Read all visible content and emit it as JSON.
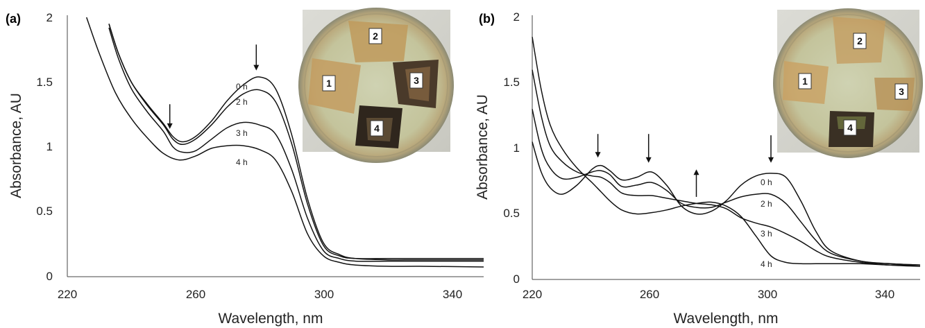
{
  "chart_data": [
    {
      "panel": "(a)",
      "type": "line",
      "xlabel": "Wavelength, nm",
      "ylabel": "Absorbance, AU",
      "xlim": [
        220,
        350
      ],
      "ylim": [
        0,
        2
      ],
      "xticks": [
        "220",
        "260",
        "300",
        "340"
      ],
      "yticks": [
        "0",
        "0.5",
        "1",
        "1.5",
        "2"
      ],
      "series": [
        {
          "name": "0 h",
          "x": [
            233,
            236,
            240,
            245,
            250,
            253,
            256,
            260,
            265,
            270,
            275,
            280,
            285,
            290,
            295,
            300,
            305,
            310,
            320,
            330,
            350
          ],
          "y": [
            1.95,
            1.72,
            1.5,
            1.33,
            1.18,
            1.08,
            1.04,
            1.08,
            1.2,
            1.36,
            1.48,
            1.54,
            1.45,
            1.1,
            0.6,
            0.26,
            0.17,
            0.14,
            0.13,
            0.13,
            0.13
          ]
        },
        {
          "name": "2 h",
          "x": [
            233,
            236,
            240,
            245,
            250,
            253,
            256,
            260,
            265,
            270,
            275,
            280,
            285,
            290,
            295,
            300,
            305,
            310,
            320,
            330,
            350
          ],
          "y": [
            1.95,
            1.72,
            1.5,
            1.32,
            1.17,
            1.06,
            1.02,
            1.06,
            1.17,
            1.31,
            1.41,
            1.44,
            1.35,
            1.03,
            0.56,
            0.24,
            0.16,
            0.14,
            0.14,
            0.14,
            0.14
          ]
        },
        {
          "name": "3 h",
          "x": [
            233,
            236,
            240,
            245,
            250,
            253,
            256,
            260,
            265,
            270,
            275,
            280,
            285,
            290,
            295,
            300,
            305,
            310,
            320,
            330,
            350
          ],
          "y": [
            1.92,
            1.68,
            1.45,
            1.27,
            1.12,
            1.0,
            0.96,
            0.97,
            1.06,
            1.15,
            1.19,
            1.17,
            1.1,
            0.83,
            0.45,
            0.2,
            0.14,
            0.12,
            0.12,
            0.12,
            0.12
          ]
        },
        {
          "name": "4 h",
          "x": [
            226,
            230,
            235,
            240,
            245,
            250,
            255,
            260,
            265,
            270,
            275,
            280,
            285,
            290,
            295,
            300,
            305,
            310,
            320,
            330,
            350
          ],
          "y": [
            2.0,
            1.72,
            1.42,
            1.22,
            1.07,
            0.95,
            0.9,
            0.93,
            0.99,
            1.01,
            1.01,
            0.98,
            0.9,
            0.66,
            0.33,
            0.16,
            0.11,
            0.09,
            0.08,
            0.08,
            0.075
          ]
        }
      ],
      "annotations": [
        {
          "text": "0 h"
        },
        {
          "text": "2 h"
        },
        {
          "text": "3 h"
        },
        {
          "text": "4 h"
        }
      ],
      "arrows": [
        {
          "x": 252,
          "y_from": 1.33,
          "y_to": 1.14,
          "direction": "down"
        },
        {
          "x": 279,
          "y_from": 1.79,
          "y_to": 1.59,
          "direction": "down"
        }
      ],
      "inset": {
        "labels": [
          "1",
          "2",
          "3",
          "4"
        ]
      }
    },
    {
      "panel": "(b)",
      "type": "line",
      "xlabel": "Wavelength, nm",
      "ylabel": "Absorbance, AU",
      "xlim": [
        220,
        350
      ],
      "ylim": [
        0,
        2
      ],
      "xticks": [
        "220",
        "260",
        "300",
        "340"
      ],
      "yticks": [
        "0",
        "0.5",
        "1",
        "1.5",
        "2"
      ],
      "series": [
        {
          "name": "0 h",
          "x": [
            220,
            223,
            226,
            230,
            235,
            240,
            243,
            246,
            250,
            255,
            260,
            265,
            270,
            275,
            280,
            285,
            290,
            295,
            300,
            305,
            310,
            315,
            320,
            330,
            340,
            350
          ],
          "y": [
            1.05,
            0.82,
            0.7,
            0.65,
            0.72,
            0.84,
            0.87,
            0.83,
            0.76,
            0.78,
            0.82,
            0.72,
            0.56,
            0.5,
            0.52,
            0.6,
            0.72,
            0.79,
            0.81,
            0.78,
            0.6,
            0.37,
            0.22,
            0.14,
            0.12,
            0.11
          ]
        },
        {
          "name": "2 h",
          "x": [
            220,
            223,
            226,
            230,
            235,
            240,
            243,
            246,
            250,
            255,
            260,
            265,
            270,
            275,
            280,
            285,
            290,
            295,
            300,
            305,
            310,
            315,
            320,
            330,
            340,
            350
          ],
          "y": [
            1.3,
            1.0,
            0.85,
            0.77,
            0.78,
            0.82,
            0.83,
            0.8,
            0.71,
            0.72,
            0.74,
            0.68,
            0.58,
            0.55,
            0.55,
            0.59,
            0.63,
            0.65,
            0.65,
            0.58,
            0.44,
            0.3,
            0.2,
            0.14,
            0.12,
            0.11
          ]
        },
        {
          "name": "3 h",
          "x": [
            220,
            223,
            226,
            230,
            235,
            240,
            243,
            246,
            250,
            255,
            260,
            265,
            270,
            275,
            280,
            285,
            290,
            295,
            300,
            305,
            310,
            315,
            320,
            330,
            340,
            350
          ],
          "y": [
            1.6,
            1.25,
            1.02,
            0.9,
            0.82,
            0.79,
            0.78,
            0.74,
            0.66,
            0.64,
            0.64,
            0.62,
            0.6,
            0.58,
            0.57,
            0.54,
            0.47,
            0.43,
            0.4,
            0.35,
            0.29,
            0.22,
            0.17,
            0.13,
            0.11,
            0.1
          ]
        },
        {
          "name": "4 h",
          "x": [
            220,
            223,
            226,
            230,
            235,
            240,
            243,
            246,
            250,
            255,
            260,
            265,
            270,
            275,
            280,
            285,
            290,
            295,
            300,
            305,
            310,
            315,
            320,
            330,
            340,
            350
          ],
          "y": [
            1.85,
            1.45,
            1.18,
            1.0,
            0.85,
            0.74,
            0.67,
            0.6,
            0.53,
            0.5,
            0.51,
            0.53,
            0.56,
            0.58,
            0.59,
            0.56,
            0.48,
            0.33,
            0.18,
            0.13,
            0.12,
            0.12,
            0.12,
            0.12,
            0.11,
            0.11
          ]
        }
      ],
      "annotations": [
        {
          "text": "0 h"
        },
        {
          "text": "2 h"
        },
        {
          "text": "3 h"
        },
        {
          "text": "4 h"
        }
      ],
      "arrows": [
        {
          "x": 242,
          "y_from": 1.11,
          "y_to": 0.93,
          "direction": "down"
        },
        {
          "x": 259,
          "y_from": 1.11,
          "y_to": 0.89,
          "direction": "down"
        },
        {
          "x": 300,
          "y_from": 1.1,
          "y_to": 0.89,
          "direction": "down"
        },
        {
          "x": 275,
          "y_from": 0.63,
          "y_to": 0.84,
          "direction": "up"
        }
      ],
      "inset": {
        "labels": [
          "1",
          "2",
          "3",
          "4"
        ]
      }
    }
  ]
}
